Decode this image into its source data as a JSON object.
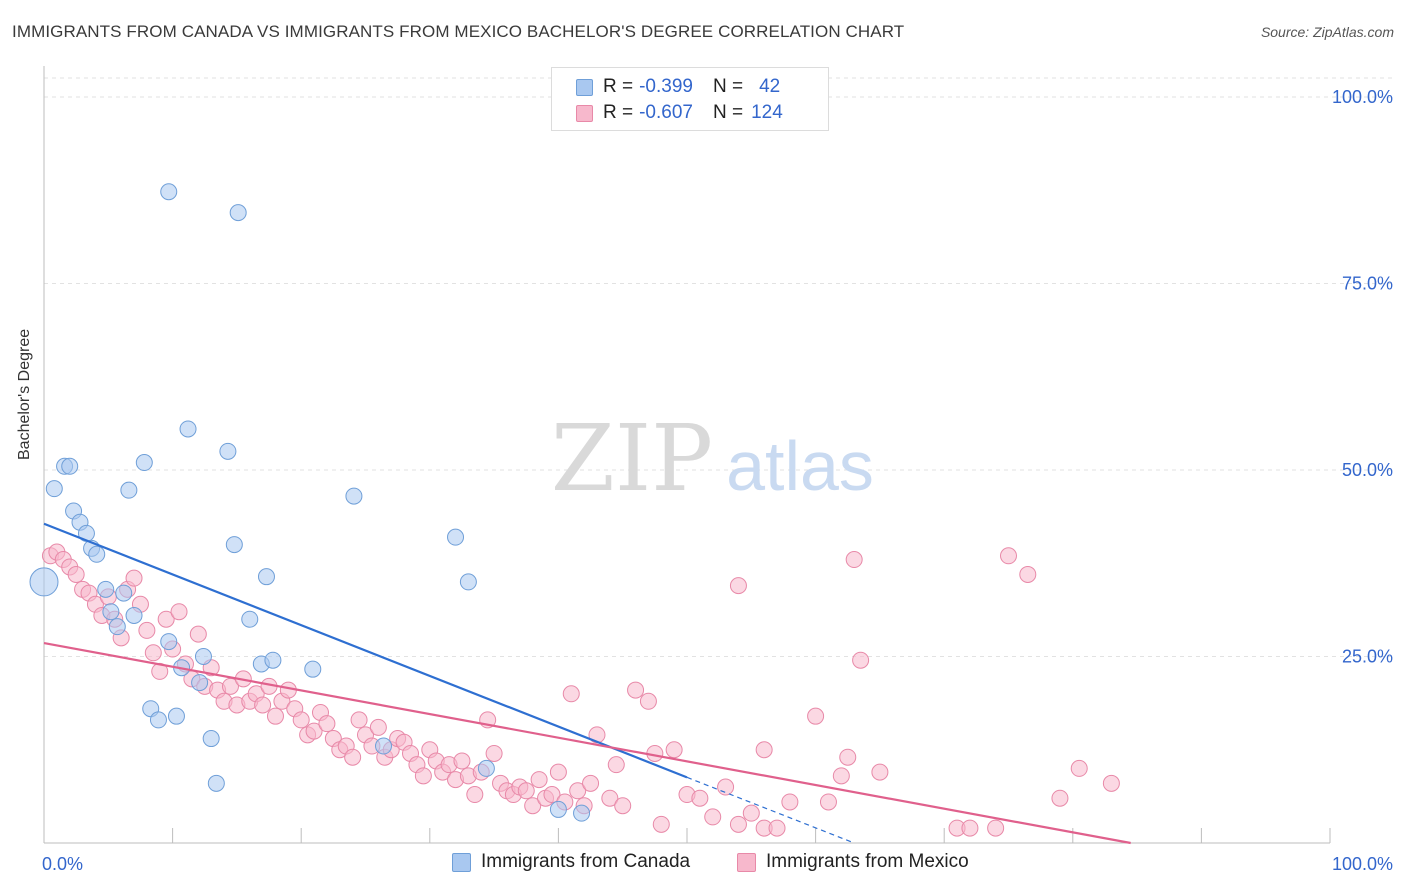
{
  "title": "IMMIGRANTS FROM CANADA VS IMMIGRANTS FROM MEXICO BACHELOR'S DEGREE CORRELATION CHART",
  "source": "Source: ZipAtlas.com",
  "watermark": {
    "zip": "ZIP",
    "atlas": "atlas"
  },
  "legend_top": {
    "canada": {
      "r_label": "R =",
      "r_value": "-0.399",
      "n_label": "N =",
      "n_value": "42"
    },
    "mexico": {
      "r_label": "R =",
      "r_value": "-0.607",
      "n_label": "N =",
      "n_value": "124"
    }
  },
  "legend_bottom": {
    "canada": "Immigrants from Canada",
    "mexico": "Immigrants from Mexico"
  },
  "colors": {
    "canada_fill": "#a9c8f0",
    "canada_stroke": "#6f9fd8",
    "canada_line": "#2e6fd1",
    "mexico_fill": "#f7b8cc",
    "mexico_stroke": "#e889a8",
    "mexico_line": "#e0608c",
    "axis_label": "#3366cc"
  },
  "chart_data": {
    "type": "scatter",
    "title": "IMMIGRANTS FROM CANADA VS IMMIGRANTS FROM MEXICO BACHELOR'S DEGREE CORRELATION CHART",
    "xlabel": "",
    "ylabel": "Bachelor's Degree",
    "xlim": [
      0,
      100
    ],
    "ylim": [
      0,
      100
    ],
    "x_tick_labels": [
      {
        "value": 0,
        "label": "0.0%"
      },
      {
        "value": 100,
        "label": "100.0%"
      }
    ],
    "y_tick_labels": [
      {
        "value": 25,
        "label": "25.0%"
      },
      {
        "value": 50,
        "label": "50.0%"
      },
      {
        "value": 75,
        "label": "75.0%"
      },
      {
        "value": 100,
        "label": "100.0%"
      }
    ],
    "series": [
      {
        "name": "Immigrants from Canada",
        "r": -0.399,
        "n": 42,
        "trend": {
          "x0": 0,
          "y0": 42.8,
          "x1": 50,
          "y1": 8.8,
          "dash_to_x": 63,
          "dash_to_y": 0
        },
        "points": [
          [
            0,
            35,
            3
          ],
          [
            0.8,
            47.5,
            1
          ],
          [
            1.6,
            50.5,
            1
          ],
          [
            2,
            50.5,
            1
          ],
          [
            2.3,
            44.5,
            1
          ],
          [
            2.8,
            43,
            1
          ],
          [
            3.3,
            41.5,
            1
          ],
          [
            3.7,
            39.5,
            1
          ],
          [
            4.1,
            38.7,
            1
          ],
          [
            4.8,
            34,
            1
          ],
          [
            5.2,
            31,
            1
          ],
          [
            5.7,
            29,
            1
          ],
          [
            6.2,
            33.5,
            1
          ],
          [
            6.6,
            47.3,
            1
          ],
          [
            7,
            30.5,
            1
          ],
          [
            7.8,
            51,
            1
          ],
          [
            8.3,
            18,
            1
          ],
          [
            8.9,
            16.5,
            1
          ],
          [
            9.7,
            87.3,
            1
          ],
          [
            9.7,
            27,
            1
          ],
          [
            10.3,
            17,
            1
          ],
          [
            10.7,
            23.5,
            1
          ],
          [
            11.2,
            55.5,
            1
          ],
          [
            12.1,
            21.5,
            1
          ],
          [
            12.4,
            25,
            1
          ],
          [
            13,
            14,
            1
          ],
          [
            13.4,
            8,
            1
          ],
          [
            14.3,
            52.5,
            1
          ],
          [
            14.8,
            40,
            1
          ],
          [
            15.1,
            84.5,
            1
          ],
          [
            16,
            30,
            1
          ],
          [
            16.9,
            24,
            1
          ],
          [
            17.3,
            35.7,
            1
          ],
          [
            17.8,
            24.5,
            1
          ],
          [
            20.9,
            23.3,
            1
          ],
          [
            24.1,
            46.5,
            1
          ],
          [
            26.4,
            13,
            1
          ],
          [
            32,
            41,
            1
          ],
          [
            33,
            35,
            1
          ],
          [
            34.4,
            10,
            1
          ],
          [
            40,
            4.5,
            1
          ],
          [
            41.8,
            4,
            1
          ]
        ]
      },
      {
        "name": "Immigrants from Mexico",
        "r": -0.607,
        "n": 124,
        "trend": {
          "x0": 0,
          "y0": 26.8,
          "x1": 84.5,
          "y1": 0
        },
        "points": [
          [
            0.5,
            38.5,
            1
          ],
          [
            1,
            39,
            1
          ],
          [
            1.5,
            38,
            1
          ],
          [
            2,
            37,
            1
          ],
          [
            2.5,
            36,
            1
          ],
          [
            3,
            34,
            1
          ],
          [
            3.5,
            33.5,
            1
          ],
          [
            4,
            32,
            1
          ],
          [
            4.5,
            30.5,
            1
          ],
          [
            5,
            33,
            1
          ],
          [
            5.5,
            30,
            1
          ],
          [
            6,
            27.5,
            1
          ],
          [
            6.5,
            34,
            1
          ],
          [
            7,
            35.5,
            1
          ],
          [
            7.5,
            32,
            1
          ],
          [
            8,
            28.5,
            1
          ],
          [
            8.5,
            25.5,
            1
          ],
          [
            9,
            23,
            1
          ],
          [
            9.5,
            30,
            1
          ],
          [
            10,
            26,
            1
          ],
          [
            10.5,
            31,
            1
          ],
          [
            11,
            24,
            1
          ],
          [
            11.5,
            22,
            1
          ],
          [
            12,
            28,
            1
          ],
          [
            12.5,
            21,
            1
          ],
          [
            13,
            23.5,
            1
          ],
          [
            13.5,
            20.5,
            1
          ],
          [
            14,
            19,
            1
          ],
          [
            14.5,
            21,
            1
          ],
          [
            15,
            18.5,
            1
          ],
          [
            15.5,
            22,
            1
          ],
          [
            16,
            19,
            1
          ],
          [
            16.5,
            20,
            1
          ],
          [
            17,
            18.5,
            1
          ],
          [
            17.5,
            21,
            1
          ],
          [
            18,
            17,
            1
          ],
          [
            18.5,
            19,
            1
          ],
          [
            19,
            20.5,
            1
          ],
          [
            19.5,
            18,
            1
          ],
          [
            20,
            16.5,
            1
          ],
          [
            20.5,
            14.5,
            1
          ],
          [
            21,
            15,
            1
          ],
          [
            21.5,
            17.5,
            1
          ],
          [
            22,
            16,
            1
          ],
          [
            22.5,
            14,
            1
          ],
          [
            23,
            12.5,
            1
          ],
          [
            23.5,
            13,
            1
          ],
          [
            24,
            11.5,
            1
          ],
          [
            24.5,
            16.5,
            1
          ],
          [
            25,
            14.5,
            1
          ],
          [
            25.5,
            13,
            1
          ],
          [
            26,
            15.5,
            1
          ],
          [
            26.5,
            11.5,
            1
          ],
          [
            27,
            12.5,
            1
          ],
          [
            27.5,
            14,
            1
          ],
          [
            28,
            13.5,
            1
          ],
          [
            28.5,
            12,
            1
          ],
          [
            29,
            10.5,
            1
          ],
          [
            29.5,
            9,
            1
          ],
          [
            30,
            12.5,
            1
          ],
          [
            30.5,
            11,
            1
          ],
          [
            31,
            9.5,
            1
          ],
          [
            31.5,
            10.5,
            1
          ],
          [
            32,
            8.5,
            1
          ],
          [
            32.5,
            11,
            1
          ],
          [
            33,
            9,
            1
          ],
          [
            33.5,
            6.5,
            1
          ],
          [
            34,
            9.5,
            1
          ],
          [
            34.5,
            16.5,
            1
          ],
          [
            35,
            12,
            1
          ],
          [
            35.5,
            8,
            1
          ],
          [
            36,
            7,
            1
          ],
          [
            36.5,
            6.5,
            1
          ],
          [
            37,
            7.5,
            1
          ],
          [
            37.5,
            7,
            1
          ],
          [
            38,
            5,
            1
          ],
          [
            38.5,
            8.5,
            1
          ],
          [
            39,
            6,
            1
          ],
          [
            39.5,
            6.5,
            1
          ],
          [
            40,
            9.5,
            1
          ],
          [
            40.5,
            5.5,
            1
          ],
          [
            41,
            20,
            1
          ],
          [
            41.5,
            7,
            1
          ],
          [
            42,
            5,
            1
          ],
          [
            42.5,
            8,
            1
          ],
          [
            43,
            14.5,
            1
          ],
          [
            44,
            6,
            1
          ],
          [
            44.5,
            10.5,
            1
          ],
          [
            45,
            5,
            1
          ],
          [
            46,
            20.5,
            1
          ],
          [
            47,
            19,
            1
          ],
          [
            47.5,
            12,
            1
          ],
          [
            48,
            2.5,
            1
          ],
          [
            49,
            12.5,
            1
          ],
          [
            50,
            6.5,
            1
          ],
          [
            51,
            6,
            1
          ],
          [
            52,
            3.5,
            1
          ],
          [
            53,
            7.5,
            1
          ],
          [
            54,
            2.5,
            1
          ],
          [
            55,
            4,
            1
          ],
          [
            56,
            2,
            1
          ],
          [
            54,
            34.5,
            1
          ],
          [
            56,
            12.5,
            1
          ],
          [
            57,
            2,
            1
          ],
          [
            58,
            5.5,
            1
          ],
          [
            60,
            17,
            1
          ],
          [
            61,
            5.5,
            1
          ],
          [
            62,
            9,
            1
          ],
          [
            62.5,
            11.5,
            1
          ],
          [
            63.5,
            24.5,
            1
          ],
          [
            63,
            38,
            1
          ],
          [
            65,
            9.5,
            1
          ],
          [
            71,
            2,
            1
          ],
          [
            72,
            2,
            1
          ],
          [
            74,
            2,
            1
          ],
          [
            75,
            38.5,
            1
          ],
          [
            76.5,
            36,
            1
          ],
          [
            79,
            6,
            1
          ],
          [
            80.5,
            10,
            1
          ],
          [
            83,
            8,
            1
          ]
        ]
      }
    ]
  }
}
